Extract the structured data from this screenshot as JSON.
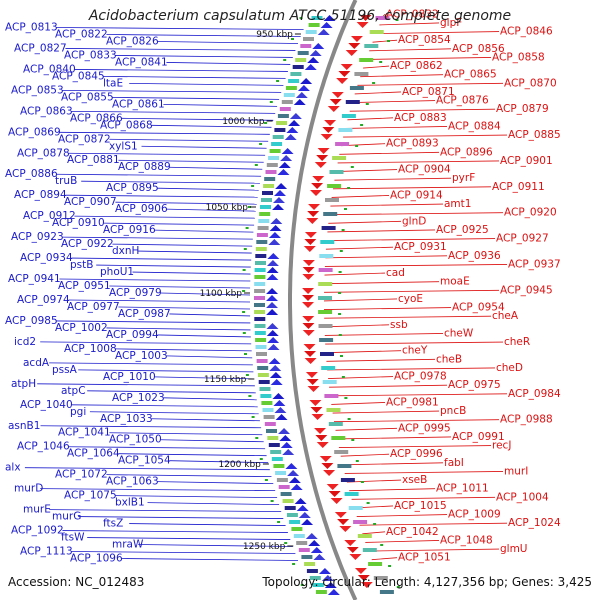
{
  "title": "Acidobacterium capsulatum ATCC 51196, complete genome",
  "footer": {
    "accession": "Accession: NC_012483",
    "summary": "Topology: circular; Length: 4,127,356 bp; Genes: 3,425"
  },
  "colors": {
    "forward_strand": "#1a1acc",
    "reverse_strand": "#dd1111",
    "backbone": "#888888"
  },
  "kbp_marks": [
    "950 kbp",
    "1000 kbp",
    "1050 kbp",
    "1100 kbp",
    "1150 kbp",
    "1200 kbp",
    "1250 kbp"
  ],
  "left_labels": [
    "ACP_0813",
    "ACP_0822",
    "ACP_0826",
    "ACP_0827",
    "ACP_0833",
    "ACP_0841",
    "ACP_0840",
    "ACP_0845",
    "ltaE",
    "ACP_0853",
    "ACP_0855",
    "ACP_0861",
    "ACP_0863",
    "ACP_0866",
    "ACP_0868",
    "ACP_0869",
    "ACP_0872",
    "xylS1",
    "ACP_0878",
    "ACP_0881",
    "ACP_0889",
    "ACP_0886",
    "truB",
    "ACP_0895",
    "ACP_0894",
    "ACP_0907",
    "ACP_0906",
    "ACP_0912",
    "ACP_0910",
    "ACP_0916",
    "ACP_0923",
    "ACP_0922",
    "dxnH",
    "ACP_0934",
    "pstB",
    "phoU1",
    "ACP_0941",
    "ACP_0951",
    "ACP_0979",
    "ACP_0974",
    "ACP_0977",
    "ACP_0987",
    "ACP_0985",
    "ACP_1002",
    "ACP_0994",
    "icd2",
    "ACP_1008",
    "ACP_1003",
    "acdA",
    "pssA",
    "ACP_1010",
    "atpH",
    "atpC",
    "ACP_1023",
    "ACP_1040",
    "pgi",
    "ACP_1033",
    "asnB1",
    "ACP_1041",
    "ACP_1050",
    "ACP_1046",
    "ACP_1064",
    "ACP_1054",
    "alx",
    "ACP_1072",
    "ACP_1063",
    "murD",
    "ACP_1075",
    "bxlB1",
    "murE",
    "murG",
    "ftsZ",
    "ACP_1092",
    "ftsW",
    "mraW",
    "ACP_1113",
    "ACP_1096"
  ],
  "right_labels": [
    "ACP_0832",
    "glpF",
    "ACP_0846",
    "ACP_0854",
    "ACP_0856",
    "ACP_0858",
    "ACP_0862",
    "ACP_0865",
    "ACP_0870",
    "ACP_0871",
    "ACP_0876",
    "ACP_0879",
    "ACP_0883",
    "ACP_0884",
    "ACP_0885",
    "ACP_0893",
    "ACP_0896",
    "ACP_0901",
    "ACP_0904",
    "pyrF",
    "ACP_0911",
    "ACP_0914",
    "amt1",
    "ACP_0920",
    "glnD",
    "ACP_0925",
    "ACP_0927",
    "ACP_0931",
    "ACP_0936",
    "ACP_0937",
    "cad",
    "moaE",
    "ACP_0945",
    "cyoE",
    "ACP_0954",
    "cheA",
    "ssb",
    "cheW",
    "cheR",
    "cheY",
    "cheB",
    "cheD",
    "ACP_0978",
    "ACP_0975",
    "ACP_0984",
    "ACP_0981",
    "pncB",
    "ACP_0988",
    "ACP_0995",
    "ACP_0991",
    "recJ",
    "ACP_0996",
    "fabI",
    "murI",
    "xseB",
    "ACP_1011",
    "ACP_1004",
    "ACP_1015",
    "ACP_1009",
    "ACP_1024",
    "ACP_1042",
    "ACP_1048",
    "glmU",
    "ACP_1051"
  ]
}
